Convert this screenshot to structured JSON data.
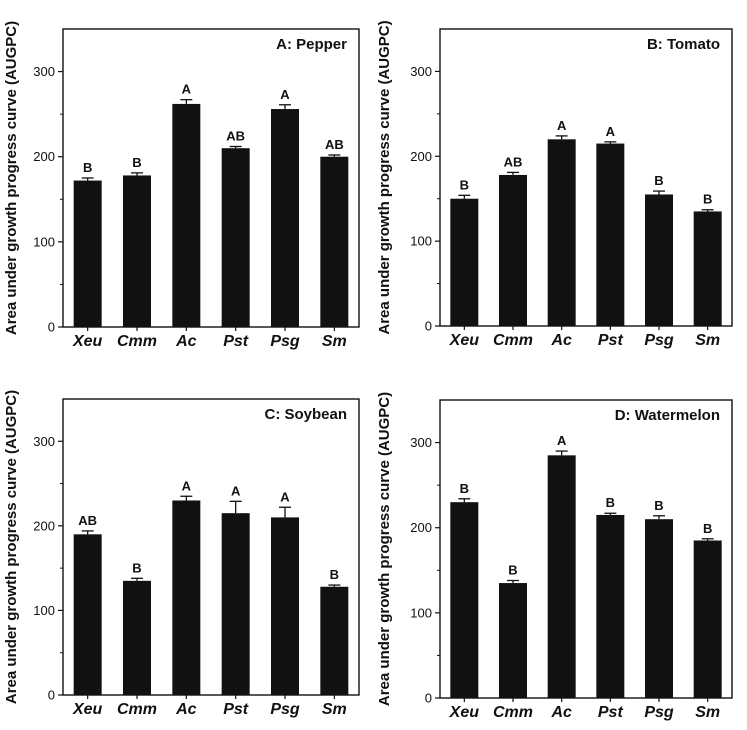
{
  "figure": {
    "ylabel": "Area under growth progress curve (AUGPC)",
    "bar_color": "#111111",
    "background": "#ffffff"
  },
  "chart_data": [
    {
      "type": "bar",
      "title": "A: Pepper",
      "ylabel": "Area under growth progress curve (AUGPC)",
      "xlabel": "",
      "categories": [
        "Xeu",
        "Cmm",
        "Ac",
        "Pst",
        "Psg",
        "Sm"
      ],
      "values": [
        172,
        178,
        262,
        210,
        256,
        200
      ],
      "errors": [
        3,
        3,
        5,
        2,
        5,
        2
      ],
      "letters": [
        "B",
        "B",
        "A",
        "AB",
        "A",
        "AB"
      ],
      "yticks": [
        0,
        100,
        200,
        300
      ],
      "ylim": [
        0,
        350
      ]
    },
    {
      "type": "bar",
      "title": "B: Tomato",
      "ylabel": "Area under growth progress curve (AUGPC)",
      "xlabel": "",
      "categories": [
        "Xeu",
        "Cmm",
        "Ac",
        "Pst",
        "Psg",
        "Sm"
      ],
      "values": [
        150,
        178,
        220,
        215,
        155,
        135
      ],
      "errors": [
        4,
        3,
        4,
        2,
        4,
        2
      ],
      "letters": [
        "B",
        "AB",
        "A",
        "A",
        "B",
        "B"
      ],
      "yticks": [
        0,
        100,
        200,
        300
      ],
      "ylim": [
        0,
        350
      ]
    },
    {
      "type": "bar",
      "title": "C: Soybean",
      "ylabel": "Area under growth progress curve (AUGPC)",
      "xlabel": "",
      "categories": [
        "Xeu",
        "Cmm",
        "Ac",
        "Pst",
        "Psg",
        "Sm"
      ],
      "values": [
        190,
        135,
        230,
        215,
        210,
        128
      ],
      "errors": [
        4,
        3,
        5,
        14,
        12,
        2
      ],
      "letters": [
        "AB",
        "B",
        "A",
        "A",
        "A",
        "B"
      ],
      "yticks": [
        0,
        100,
        200,
        300
      ],
      "ylim": [
        0,
        350
      ]
    },
    {
      "type": "bar",
      "title": "D: Watermelon",
      "ylabel": "Area under growth progress curve (AUGPC)",
      "xlabel": "",
      "categories": [
        "Xeu",
        "Cmm",
        "Ac",
        "Pst",
        "Psg",
        "Sm"
      ],
      "values": [
        230,
        135,
        285,
        215,
        210,
        185
      ],
      "errors": [
        4,
        3,
        5,
        2,
        4,
        2
      ],
      "letters": [
        "B",
        "B",
        "A",
        "B",
        "B",
        "B"
      ],
      "yticks": [
        0,
        100,
        200,
        300
      ],
      "ylim": [
        0,
        350
      ]
    }
  ]
}
